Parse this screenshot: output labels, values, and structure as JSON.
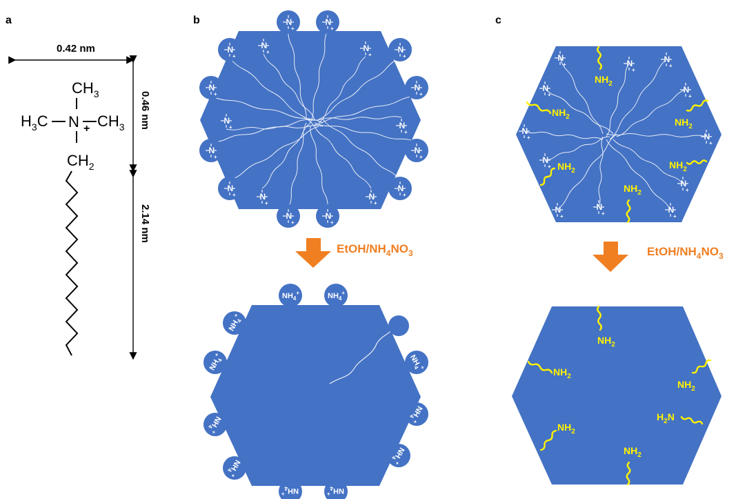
{
  "panels": {
    "a": "a",
    "b": "b",
    "c": "c"
  },
  "dimensions": {
    "width": "0.42 nm",
    "head": "0.46 nm",
    "tail": "2.14 nm"
  },
  "molecule": {
    "top_group": "CH",
    "top_sub": "3",
    "left_group": "H",
    "left_sub": "3",
    "left_suffix": "C",
    "nitrogen": "N",
    "charge": "+",
    "right_group": "CH",
    "right_sub": "3",
    "bottom_group": "CH",
    "bottom_sub": "2"
  },
  "reagent": {
    "main": "EtOH/NH",
    "sub1": "4",
    "mid": "NO",
    "sub2": "3"
  },
  "ions": {
    "ammonium": "NH",
    "ammonium_sub": "4",
    "ammonium_charge": "+",
    "quat_n": "N",
    "quat_charge": "+"
  },
  "amine": {
    "main": "NH",
    "sub": "2",
    "reversed_prefix": "H",
    "reversed_sub": "2",
    "reversed_suffix": "N"
  },
  "colors": {
    "particle": "#4472C4",
    "arrow": "#F07F22",
    "amine": "#FFF200",
    "ink": "#000000"
  }
}
